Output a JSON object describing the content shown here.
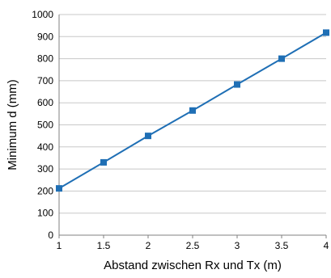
{
  "chart_data": {
    "type": "line",
    "title": "",
    "xlabel": "Abstand zwischen Rx und Tx (m)",
    "ylabel": "Minimum d (mm)",
    "xlim": [
      1,
      4
    ],
    "ylim": [
      0,
      1000
    ],
    "x_ticks": [
      "1",
      "1.5",
      "2",
      "2.5",
      "3",
      "3.5",
      "4"
    ],
    "y_ticks": [
      "0",
      "100",
      "200",
      "300",
      "400",
      "500",
      "600",
      "700",
      "800",
      "900",
      "1000"
    ],
    "grid": "horizontal",
    "legend": "none",
    "series": [
      {
        "x": [
          1,
          1.5,
          2,
          2.5,
          3,
          3.5,
          4
        ],
        "values": [
          212,
          330,
          450,
          565,
          683,
          800,
          918
        ],
        "color": "#1f6fb5",
        "marker": "square"
      }
    ]
  }
}
